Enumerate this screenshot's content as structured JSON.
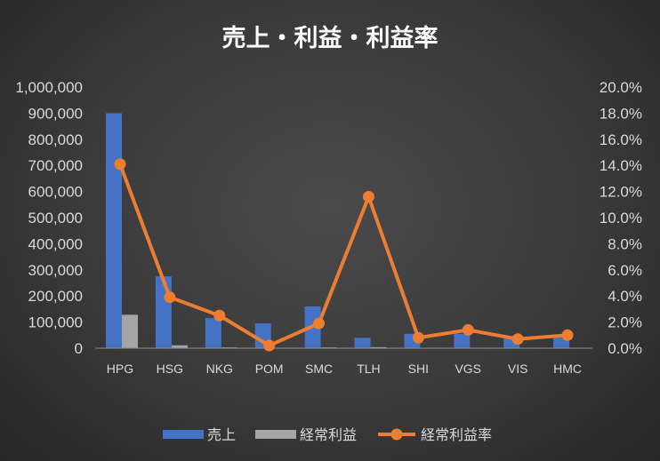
{
  "chart_data": {
    "type": "bar",
    "title": "売上・利益・利益率",
    "categories": [
      "HPG",
      "HSG",
      "NKG",
      "POM",
      "SMC",
      "TLH",
      "SHI",
      "VGS",
      "VIS",
      "HMC"
    ],
    "series": [
      {
        "name": "売上",
        "type": "bar",
        "axis": "left",
        "color": "#4472c4",
        "values": [
          900000,
          275000,
          115000,
          95000,
          160000,
          40000,
          55000,
          55000,
          45000,
          40000
        ]
      },
      {
        "name": "経常利益",
        "type": "bar",
        "axis": "left",
        "color": "#a5a5a5",
        "values": [
          128000,
          11000,
          3000,
          300,
          3000,
          4000,
          400,
          800,
          300,
          400
        ]
      },
      {
        "name": "経常利益率",
        "type": "line",
        "axis": "right",
        "color": "#ed7d31",
        "values": [
          14.1,
          3.9,
          2.5,
          0.2,
          1.9,
          11.6,
          0.8,
          1.4,
          0.7,
          1.0
        ]
      }
    ],
    "y_left": {
      "min": 0,
      "max": 1000000,
      "step": 100000,
      "tick_labels": [
        "0",
        "100,000",
        "200,000",
        "300,000",
        "400,000",
        "500,000",
        "600,000",
        "700,000",
        "800,000",
        "900,000",
        "1,000,000"
      ]
    },
    "y_right": {
      "min": 0,
      "max": 20,
      "step": 2,
      "tick_labels": [
        "0.0%",
        "2.0%",
        "4.0%",
        "6.0%",
        "8.0%",
        "10.0%",
        "12.0%",
        "14.0%",
        "16.0%",
        "18.0%",
        "20.0%"
      ]
    },
    "grid": false,
    "legend": {
      "position": "bottom",
      "items": [
        "売上",
        "経常利益",
        "経常利益率"
      ]
    }
  }
}
